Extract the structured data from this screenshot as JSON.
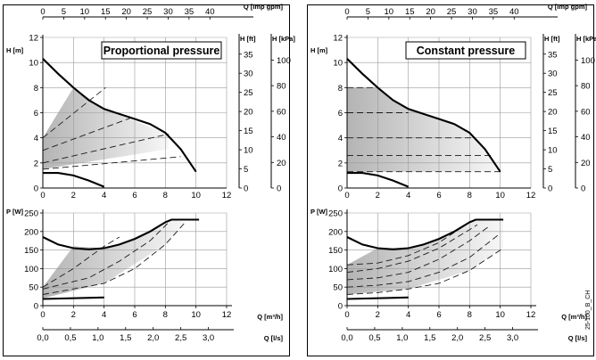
{
  "colors": {
    "curve": "#000000",
    "dashed": "#1a1a1a",
    "grid": "#9a9a9a",
    "shade_dark": "#b4b4b4",
    "shade_light": "#f7f7f7",
    "panel_border": "#000000"
  },
  "code_label": "25-100_B_CH",
  "chart_data": [
    {
      "type": "line",
      "title": "Proportional pressure",
      "head_chart": {
        "x_label": "Q [m³/h]",
        "x_range": [
          0,
          12
        ],
        "top_axis": {
          "label": "Q [Imp gpm]",
          "ticks": [
            "0",
            "5",
            "10",
            "15",
            "20",
            "25",
            "30",
            "35",
            "40"
          ],
          "range": [
            0,
            44
          ]
        },
        "left_axis": {
          "label": "H [m]",
          "ticks": [
            "0",
            "2",
            "4",
            "6",
            "8",
            "10",
            "12"
          ],
          "range": [
            0,
            12
          ]
        },
        "right_axis_ft": {
          "label": "H [ft]",
          "ticks": [
            "0",
            "5",
            "10",
            "15",
            "20",
            "25",
            "30",
            "35"
          ],
          "range": [
            0,
            39.37
          ]
        },
        "right_axis_kpa": {
          "label": "H [kPa]",
          "ticks": [
            "0",
            "20",
            "40",
            "60",
            "80",
            "100"
          ],
          "range": [
            0,
            117.7
          ]
        },
        "max_curve": [
          [
            0,
            10.3
          ],
          [
            1,
            9.1
          ],
          [
            2,
            8.0
          ],
          [
            3,
            7.0
          ],
          [
            4,
            6.3
          ],
          [
            5,
            5.9
          ],
          [
            6,
            5.5
          ],
          [
            7,
            5.1
          ],
          [
            8,
            4.4
          ],
          [
            9,
            3.1
          ],
          [
            10,
            1.3
          ]
        ],
        "min_curve": [
          [
            0,
            1.2
          ],
          [
            1,
            1.2
          ],
          [
            2,
            1.0
          ],
          [
            3,
            0.6
          ],
          [
            4,
            0.1
          ]
        ],
        "control_curves": [
          [
            [
              0,
              4.0
            ],
            [
              4.1,
              8.0
            ]
          ],
          [
            [
              0,
              3.0
            ],
            [
              6,
              5.7
            ]
          ],
          [
            [
              0,
              2.0
            ],
            [
              8.2,
              4.3
            ]
          ],
          [
            [
              0,
              1.5
            ],
            [
              9.0,
              2.5
            ]
          ]
        ],
        "shaded_region": [
          [
            0,
            4.0
          ],
          [
            2,
            8.0
          ],
          [
            4,
            6.3
          ],
          [
            8.2,
            4.3
          ],
          [
            8.2,
            3.1
          ],
          [
            0,
            1.5
          ]
        ]
      },
      "power_chart": {
        "x_label": "Q [m³/h]",
        "x_range": [
          0,
          12
        ],
        "left_axis": {
          "label": "P [W]",
          "ticks": [
            "0",
            "50",
            "100",
            "150",
            "200",
            "250"
          ],
          "range": [
            0,
            250
          ]
        },
        "bottom_axis": {
          "label": "Q [l/s]",
          "ticks": [
            "0,0",
            "0,5",
            "1,0",
            "1,5",
            "2,0",
            "2,5",
            "3,0"
          ],
          "range": [
            0,
            3.33
          ]
        },
        "max_curve": [
          [
            0,
            185
          ],
          [
            1,
            165
          ],
          [
            2,
            155
          ],
          [
            3,
            152
          ],
          [
            4,
            155
          ],
          [
            5,
            165
          ],
          [
            6,
            180
          ],
          [
            7,
            200
          ],
          [
            8,
            225
          ],
          [
            8.4,
            232
          ],
          [
            10.2,
            232
          ]
        ],
        "min_curve": [
          [
            0,
            18
          ],
          [
            4,
            22
          ]
        ],
        "control_curves": [
          [
            [
              0,
              50
            ],
            [
              2,
              100
            ],
            [
              4,
              160
            ],
            [
              5,
              185
            ]
          ],
          [
            [
              0,
              45
            ],
            [
              3,
              75
            ],
            [
              5,
              120
            ],
            [
              7,
              175
            ],
            [
              8.4,
              232
            ]
          ],
          [
            [
              0,
              30
            ],
            [
              4,
              60
            ],
            [
              6,
              100
            ],
            [
              8,
              165
            ],
            [
              9.3,
              225
            ]
          ]
        ],
        "shaded_region": [
          [
            0,
            50
          ],
          [
            2,
            160
          ],
          [
            4,
            155
          ],
          [
            6,
            180
          ],
          [
            8,
            225
          ],
          [
            8.4,
            232
          ],
          [
            9.3,
            225
          ],
          [
            8,
            165
          ],
          [
            4,
            60
          ],
          [
            0,
            20
          ]
        ]
      }
    },
    {
      "type": "line",
      "title": "Constant pressure",
      "head_chart": {
        "x_label": "Q [m³/h]",
        "x_range": [
          0,
          12
        ],
        "top_axis": {
          "label": "Q [Imp gpm]",
          "ticks": [
            "0",
            "5",
            "10",
            "15",
            "20",
            "25",
            "30",
            "35",
            "40"
          ],
          "range": [
            0,
            44
          ]
        },
        "left_axis": {
          "label": "H [m]",
          "ticks": [
            "0",
            "2",
            "4",
            "6",
            "8",
            "10",
            "12"
          ],
          "range": [
            0,
            12
          ]
        },
        "right_axis_ft": {
          "label": "H [ft]",
          "ticks": [
            "0",
            "5",
            "10",
            "15",
            "20",
            "25",
            "30",
            "35"
          ],
          "range": [
            0,
            39.37
          ]
        },
        "right_axis_kpa": {
          "label": "H [kPa]",
          "ticks": [
            "0",
            "20",
            "40",
            "60",
            "80",
            "100"
          ],
          "range": [
            0,
            117.7
          ]
        },
        "max_curve": [
          [
            0,
            10.3
          ],
          [
            1,
            9.1
          ],
          [
            2,
            8.0
          ],
          [
            3,
            7.0
          ],
          [
            4,
            6.3
          ],
          [
            5,
            5.9
          ],
          [
            6,
            5.5
          ],
          [
            7,
            5.1
          ],
          [
            8,
            4.4
          ],
          [
            9,
            3.1
          ],
          [
            10,
            1.3
          ]
        ],
        "min_curve": [
          [
            0,
            1.2
          ],
          [
            1,
            1.2
          ],
          [
            2,
            1.0
          ],
          [
            3,
            0.6
          ],
          [
            4,
            0.1
          ]
        ],
        "control_curves": [
          [
            [
              0,
              8.0
            ],
            [
              2,
              8.0
            ]
          ],
          [
            [
              0,
              6.0
            ],
            [
              4,
              6.0
            ]
          ],
          [
            [
              0,
              4.0
            ],
            [
              8.1,
              4.0
            ]
          ],
          [
            [
              0,
              2.6
            ],
            [
              9.4,
              2.6
            ]
          ],
          [
            [
              0,
              1.3
            ],
            [
              10,
              1.3
            ]
          ]
        ],
        "shaded_region": [
          [
            0,
            8.0
          ],
          [
            2,
            8.0
          ],
          [
            3,
            7.0
          ],
          [
            4,
            6.3
          ],
          [
            5,
            5.9
          ],
          [
            6,
            5.5
          ],
          [
            7,
            5.1
          ],
          [
            8,
            4.4
          ],
          [
            8.6,
            3.6
          ],
          [
            9,
            3.1
          ],
          [
            10,
            1.3
          ],
          [
            0,
            1.3
          ]
        ]
      },
      "power_chart": {
        "x_label": "Q [m³/h]",
        "x_range": [
          0,
          12
        ],
        "left_axis": {
          "label": "P [W]",
          "ticks": [
            "0",
            "50",
            "100",
            "150",
            "200",
            "250"
          ],
          "range": [
            0,
            250
          ]
        },
        "bottom_axis": {
          "label": "Q [l/s]",
          "ticks": [
            "0,0",
            "0,5",
            "1,0",
            "1,5",
            "2,0",
            "2,5",
            "3,0"
          ],
          "range": [
            0,
            3.33
          ]
        },
        "max_curve": [
          [
            0,
            185
          ],
          [
            1,
            165
          ],
          [
            2,
            155
          ],
          [
            3,
            152
          ],
          [
            4,
            155
          ],
          [
            5,
            165
          ],
          [
            6,
            180
          ],
          [
            7,
            200
          ],
          [
            8,
            225
          ],
          [
            8.4,
            232
          ],
          [
            10.2,
            232
          ]
        ],
        "min_curve": [
          [
            0,
            18
          ],
          [
            4,
            22
          ]
        ],
        "control_curves": [
          [
            [
              0,
              110
            ],
            [
              2,
              115
            ],
            [
              4,
              135
            ],
            [
              6,
              170
            ],
            [
              8,
              225
            ]
          ],
          [
            [
              0,
              90
            ],
            [
              2,
              100
            ],
            [
              4,
              120
            ],
            [
              6,
              155
            ],
            [
              8,
              205
            ],
            [
              8.5,
              218
            ]
          ],
          [
            [
              0,
              70
            ],
            [
              2,
              75
            ],
            [
              4,
              90
            ],
            [
              6,
              125
            ],
            [
              8,
              175
            ],
            [
              9.3,
              215
            ]
          ],
          [
            [
              0,
              50
            ],
            [
              2,
              55
            ],
            [
              4,
              65
            ],
            [
              6,
              90
            ],
            [
              8,
              130
            ],
            [
              10,
              195
            ]
          ],
          [
            [
              0,
              30
            ],
            [
              2,
              35
            ],
            [
              4,
              45
            ],
            [
              6,
              60
            ],
            [
              8,
              95
            ],
            [
              10.2,
              155
            ]
          ]
        ],
        "shaded_region": [
          [
            0,
            110
          ],
          [
            2,
            155
          ],
          [
            4,
            155
          ],
          [
            6,
            180
          ],
          [
            8,
            225
          ],
          [
            8.4,
            232
          ],
          [
            10.2,
            232
          ],
          [
            10.2,
            155
          ],
          [
            8,
            95
          ],
          [
            4,
            45
          ],
          [
            0,
            30
          ]
        ]
      }
    }
  ]
}
